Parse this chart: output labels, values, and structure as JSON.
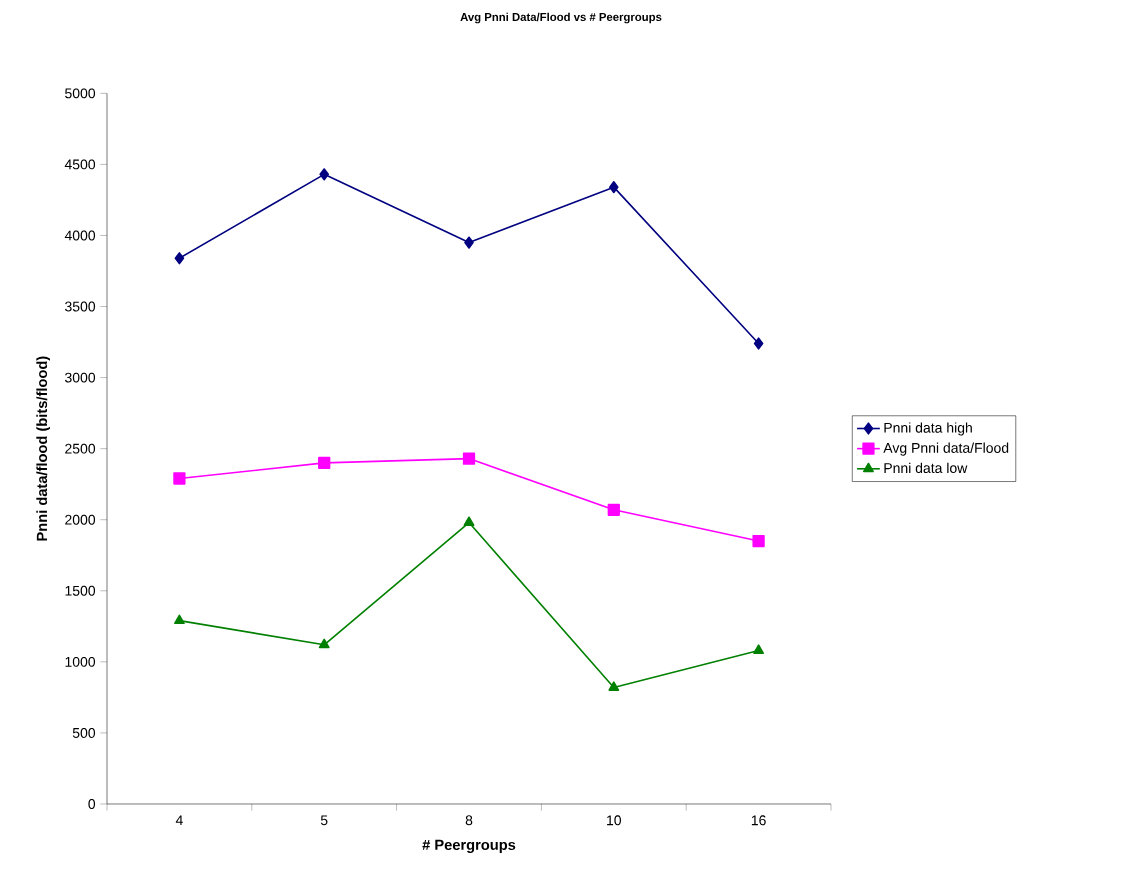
{
  "chart_data": {
    "type": "line",
    "title": "Avg Pnni Data/Flood vs # Peergroups",
    "xlabel": "# Peergroups",
    "ylabel": "Pnni data/flood (bits/flood)",
    "categories": [
      "4",
      "5",
      "8",
      "10",
      "16"
    ],
    "series": [
      {
        "name": "Pnni data high",
        "color": "#000080",
        "marker": "diamond",
        "values": [
          3840,
          4430,
          3950,
          4340,
          3240
        ]
      },
      {
        "name": "Avg Pnni data/Flood",
        "color": "#ff00ff",
        "marker": "square",
        "values": [
          2290,
          2400,
          2430,
          2070,
          1850
        ]
      },
      {
        "name": "Pnni data low",
        "color": "#008000",
        "marker": "triangle",
        "values": [
          1290,
          1120,
          1980,
          820,
          1080
        ]
      }
    ],
    "ylim": [
      0,
      5000
    ],
    "yticks": [
      0,
      500,
      1000,
      1500,
      2000,
      2500,
      3000,
      3500,
      4000,
      4500,
      5000
    ],
    "grid": false,
    "legend": "right",
    "line_style": "solid"
  }
}
